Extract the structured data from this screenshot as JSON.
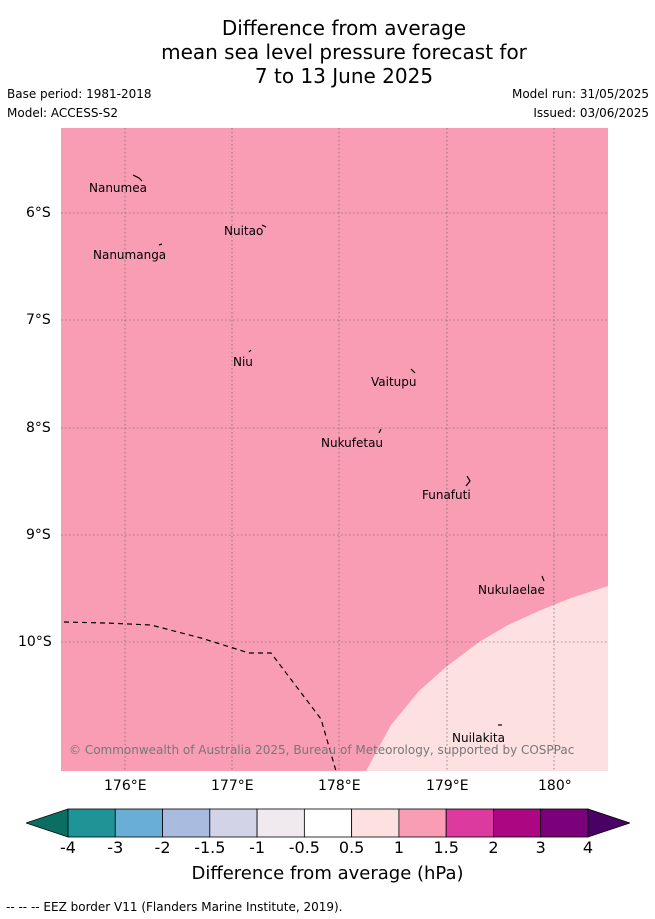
{
  "title": {
    "line1": "Difference from average",
    "line2": "mean sea level pressure forecast for",
    "line3": "7 to 13 June 2025"
  },
  "meta": {
    "base_period": "Base period: 1981-2018",
    "model": "Model: ACCESS-S2",
    "model_run": "Model run: 31/05/2025",
    "issued": "Issued: 03/06/2025"
  },
  "map": {
    "lon_range": [
      175.5,
      180.5
    ],
    "lat_range": [
      -5.0,
      -11.0
    ],
    "background_color": "#f99db4",
    "low_anomaly_color": "#fde0e0",
    "lat_labels": [
      "6°S",
      "7°S",
      "8°S",
      "9°S",
      "10°S"
    ],
    "lon_labels": [
      "176°E",
      "177°E",
      "178°E",
      "179°E",
      "180°"
    ],
    "islands": [
      {
        "name": "Nanumea",
        "lon": 176.13,
        "lat": -5.68
      },
      {
        "name": "Nuitao",
        "lon": 177.33,
        "lat": -6.1
      },
      {
        "name": "Nanumanga",
        "lon": 176.32,
        "lat": -6.29
      },
      {
        "name": "Niu",
        "lon": 177.17,
        "lat": -7.29
      },
      {
        "name": "Vaitupu",
        "lon": 178.68,
        "lat": -7.48
      },
      {
        "name": "Nukufetau",
        "lon": 178.38,
        "lat": -8.03
      },
      {
        "name": "Funafuti",
        "lon": 179.2,
        "lat": -8.52
      },
      {
        "name": "Nukulaelae",
        "lon": 179.84,
        "lat": -9.4
      },
      {
        "name": "Nuilakita",
        "lon": 179.53,
        "lat": -10.78
      }
    ],
    "copyright": "© Commonwealth of Australia 2025, Bureau of Meteorology, supported by COSPPac"
  },
  "colorbar": {
    "label": "Difference from average (hPa)",
    "ticks": [
      "-4",
      "-3",
      "-2",
      "-1.5",
      "-1",
      "-0.5",
      "0.5",
      "1",
      "1.5",
      "2",
      "3",
      "4"
    ],
    "colors": [
      "#1f9498",
      "#69aed4",
      "#a9bcdf",
      "#d3d3e8",
      "#f0e9ee",
      "#ffffff",
      "#fde0e0",
      "#f99db4",
      "#dc3a9f",
      "#ad0682",
      "#7a017a"
    ],
    "under_color": "#0a6e63",
    "over_color": "#4b0066"
  },
  "legend": {
    "eez": "-- -- -- EEZ border V11 (Flanders Marine Institute, 2019)."
  }
}
